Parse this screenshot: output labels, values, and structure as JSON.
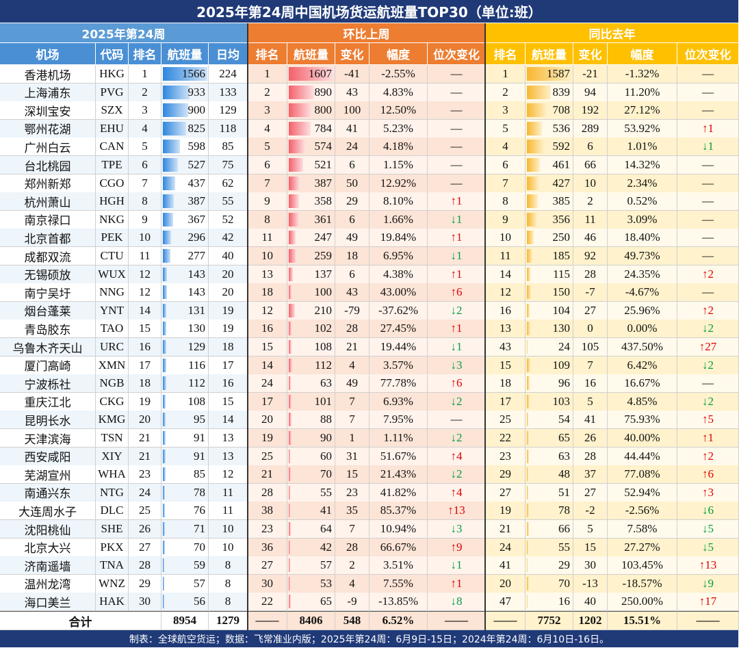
{
  "title": "2025年第24周中国机场货运航班量TOP30（单位:班）",
  "groups": [
    "2025年第24周",
    "环比上周",
    "同比去年"
  ],
  "columns": [
    "机场",
    "代码",
    "排名",
    "航班量",
    "日均",
    "排名",
    "航班量",
    "变化",
    "幅度",
    "位次变化",
    "排名",
    "航班量",
    "变化",
    "幅度",
    "位次变化"
  ],
  "rows": [
    [
      "香港机场",
      "HKG",
      "1",
      "1566",
      "224",
      "1",
      "1607",
      "-41",
      "-2.55%",
      "—",
      "1",
      "1587",
      "-21",
      "-1.32%",
      "—"
    ],
    [
      "上海浦东",
      "PVG",
      "2",
      "933",
      "133",
      "2",
      "890",
      "43",
      "4.83%",
      "—",
      "2",
      "839",
      "94",
      "11.20%",
      "—"
    ],
    [
      "深圳宝安",
      "SZX",
      "3",
      "900",
      "129",
      "3",
      "800",
      "100",
      "12.50%",
      "—",
      "3",
      "708",
      "192",
      "27.12%",
      "—"
    ],
    [
      "鄂州花湖",
      "EHU",
      "4",
      "825",
      "118",
      "4",
      "784",
      "41",
      "5.23%",
      "—",
      "5",
      "536",
      "289",
      "53.92%",
      "↑1"
    ],
    [
      "广州白云",
      "CAN",
      "5",
      "598",
      "85",
      "5",
      "574",
      "24",
      "4.18%",
      "—",
      "4",
      "592",
      "6",
      "1.01%",
      "↓1"
    ],
    [
      "台北桃园",
      "TPE",
      "6",
      "527",
      "75",
      "6",
      "521",
      "6",
      "1.15%",
      "—",
      "6",
      "461",
      "66",
      "14.32%",
      "—"
    ],
    [
      "郑州新郑",
      "CGO",
      "7",
      "437",
      "62",
      "7",
      "387",
      "50",
      "12.92%",
      "—",
      "7",
      "427",
      "10",
      "2.34%",
      "—"
    ],
    [
      "杭州萧山",
      "HGH",
      "8",
      "387",
      "55",
      "9",
      "358",
      "29",
      "8.10%",
      "↑1",
      "8",
      "385",
      "2",
      "0.52%",
      "—"
    ],
    [
      "南京禄口",
      "NKG",
      "9",
      "367",
      "52",
      "8",
      "361",
      "6",
      "1.66%",
      "↓1",
      "9",
      "356",
      "11",
      "3.09%",
      "—"
    ],
    [
      "北京首都",
      "PEK",
      "10",
      "296",
      "42",
      "11",
      "247",
      "49",
      "19.84%",
      "↑1",
      "10",
      "250",
      "46",
      "18.40%",
      "—"
    ],
    [
      "成都双流",
      "CTU",
      "11",
      "277",
      "40",
      "10",
      "259",
      "18",
      "6.95%",
      "↓1",
      "11",
      "185",
      "92",
      "49.73%",
      "—"
    ],
    [
      "无锡硕放",
      "WUX",
      "12",
      "143",
      "20",
      "13",
      "137",
      "6",
      "4.38%",
      "↑1",
      "14",
      "115",
      "28",
      "24.35%",
      "↑2"
    ],
    [
      "南宁吴圩",
      "NNG",
      "12",
      "143",
      "20",
      "18",
      "100",
      "43",
      "43.00%",
      "↑6",
      "12",
      "150",
      "-7",
      "-4.67%",
      "—"
    ],
    [
      "烟台蓬莱",
      "YNT",
      "14",
      "131",
      "19",
      "12",
      "210",
      "-79",
      "-37.62%",
      "↓2",
      "16",
      "104",
      "27",
      "25.96%",
      "↑2"
    ],
    [
      "青岛胶东",
      "TAO",
      "15",
      "130",
      "19",
      "16",
      "102",
      "28",
      "27.45%",
      "↑1",
      "13",
      "130",
      "0",
      "0.00%",
      "↓2"
    ],
    [
      "乌鲁木齐天山",
      "URC",
      "16",
      "129",
      "18",
      "15",
      "108",
      "21",
      "19.44%",
      "↓1",
      "43",
      "24",
      "105",
      "437.50%",
      "↑27"
    ],
    [
      "厦门高崎",
      "XMN",
      "17",
      "116",
      "17",
      "14",
      "112",
      "4",
      "3.57%",
      "↓3",
      "15",
      "109",
      "7",
      "6.42%",
      "↓2"
    ],
    [
      "宁波栎社",
      "NGB",
      "18",
      "112",
      "16",
      "24",
      "63",
      "49",
      "77.78%",
      "↑6",
      "18",
      "96",
      "16",
      "16.67%",
      "—"
    ],
    [
      "重庆江北",
      "CKG",
      "19",
      "108",
      "15",
      "17",
      "101",
      "7",
      "6.93%",
      "↓2",
      "17",
      "103",
      "5",
      "4.85%",
      "↓2"
    ],
    [
      "昆明长水",
      "KMG",
      "20",
      "95",
      "14",
      "20",
      "88",
      "7",
      "7.95%",
      "—",
      "25",
      "54",
      "41",
      "75.93%",
      "↑5"
    ],
    [
      "天津滨海",
      "TSN",
      "21",
      "91",
      "13",
      "19",
      "90",
      "1",
      "1.11%",
      "↓2",
      "22",
      "65",
      "26",
      "40.00%",
      "↑1"
    ],
    [
      "西安咸阳",
      "XIY",
      "21",
      "91",
      "13",
      "25",
      "60",
      "31",
      "51.67%",
      "↑4",
      "23",
      "63",
      "28",
      "44.44%",
      "↑2"
    ],
    [
      "芜湖宣州",
      "WHA",
      "23",
      "85",
      "12",
      "21",
      "70",
      "15",
      "21.43%",
      "↓2",
      "29",
      "48",
      "37",
      "77.08%",
      "↑6"
    ],
    [
      "南通兴东",
      "NTG",
      "24",
      "78",
      "11",
      "28",
      "55",
      "23",
      "41.82%",
      "↑4",
      "27",
      "51",
      "27",
      "52.94%",
      "↑3"
    ],
    [
      "大连周水子",
      "DLC",
      "25",
      "76",
      "11",
      "38",
      "41",
      "35",
      "85.37%",
      "↑13",
      "19",
      "78",
      "-2",
      "-2.56%",
      "↓6"
    ],
    [
      "沈阳桃仙",
      "SHE",
      "26",
      "71",
      "10",
      "23",
      "64",
      "7",
      "10.94%",
      "↓3",
      "21",
      "66",
      "5",
      "7.58%",
      "↓5"
    ],
    [
      "北京大兴",
      "PKX",
      "27",
      "70",
      "10",
      "36",
      "42",
      "28",
      "66.67%",
      "↑9",
      "24",
      "55",
      "15",
      "27.27%",
      "↓5"
    ],
    [
      "济南遥墙",
      "TNA",
      "28",
      "59",
      "8",
      "27",
      "57",
      "2",
      "3.51%",
      "↓1",
      "41",
      "29",
      "30",
      "103.45%",
      "↑13"
    ],
    [
      "温州龙湾",
      "WNZ",
      "29",
      "57",
      "8",
      "30",
      "53",
      "4",
      "7.55%",
      "↑1",
      "20",
      "70",
      "-13",
      "-18.57%",
      "↓9"
    ],
    [
      "海口美兰",
      "HAK",
      "30",
      "56",
      "8",
      "22",
      "65",
      "-9",
      "-13.85%",
      "↓8",
      "47",
      "16",
      "40",
      "250.00%",
      "↑17"
    ]
  ],
  "total": [
    "合计",
    "8954",
    "1279",
    "——",
    "8406",
    "548",
    "6.52%",
    "——",
    "——",
    "7752",
    "1202",
    "15.51%",
    "——"
  ],
  "footer": "制表：全球航空货运；数据：飞常准业内版；2025年第24周：6月9日-15日；2024年第24周：6月10日-16日。"
}
